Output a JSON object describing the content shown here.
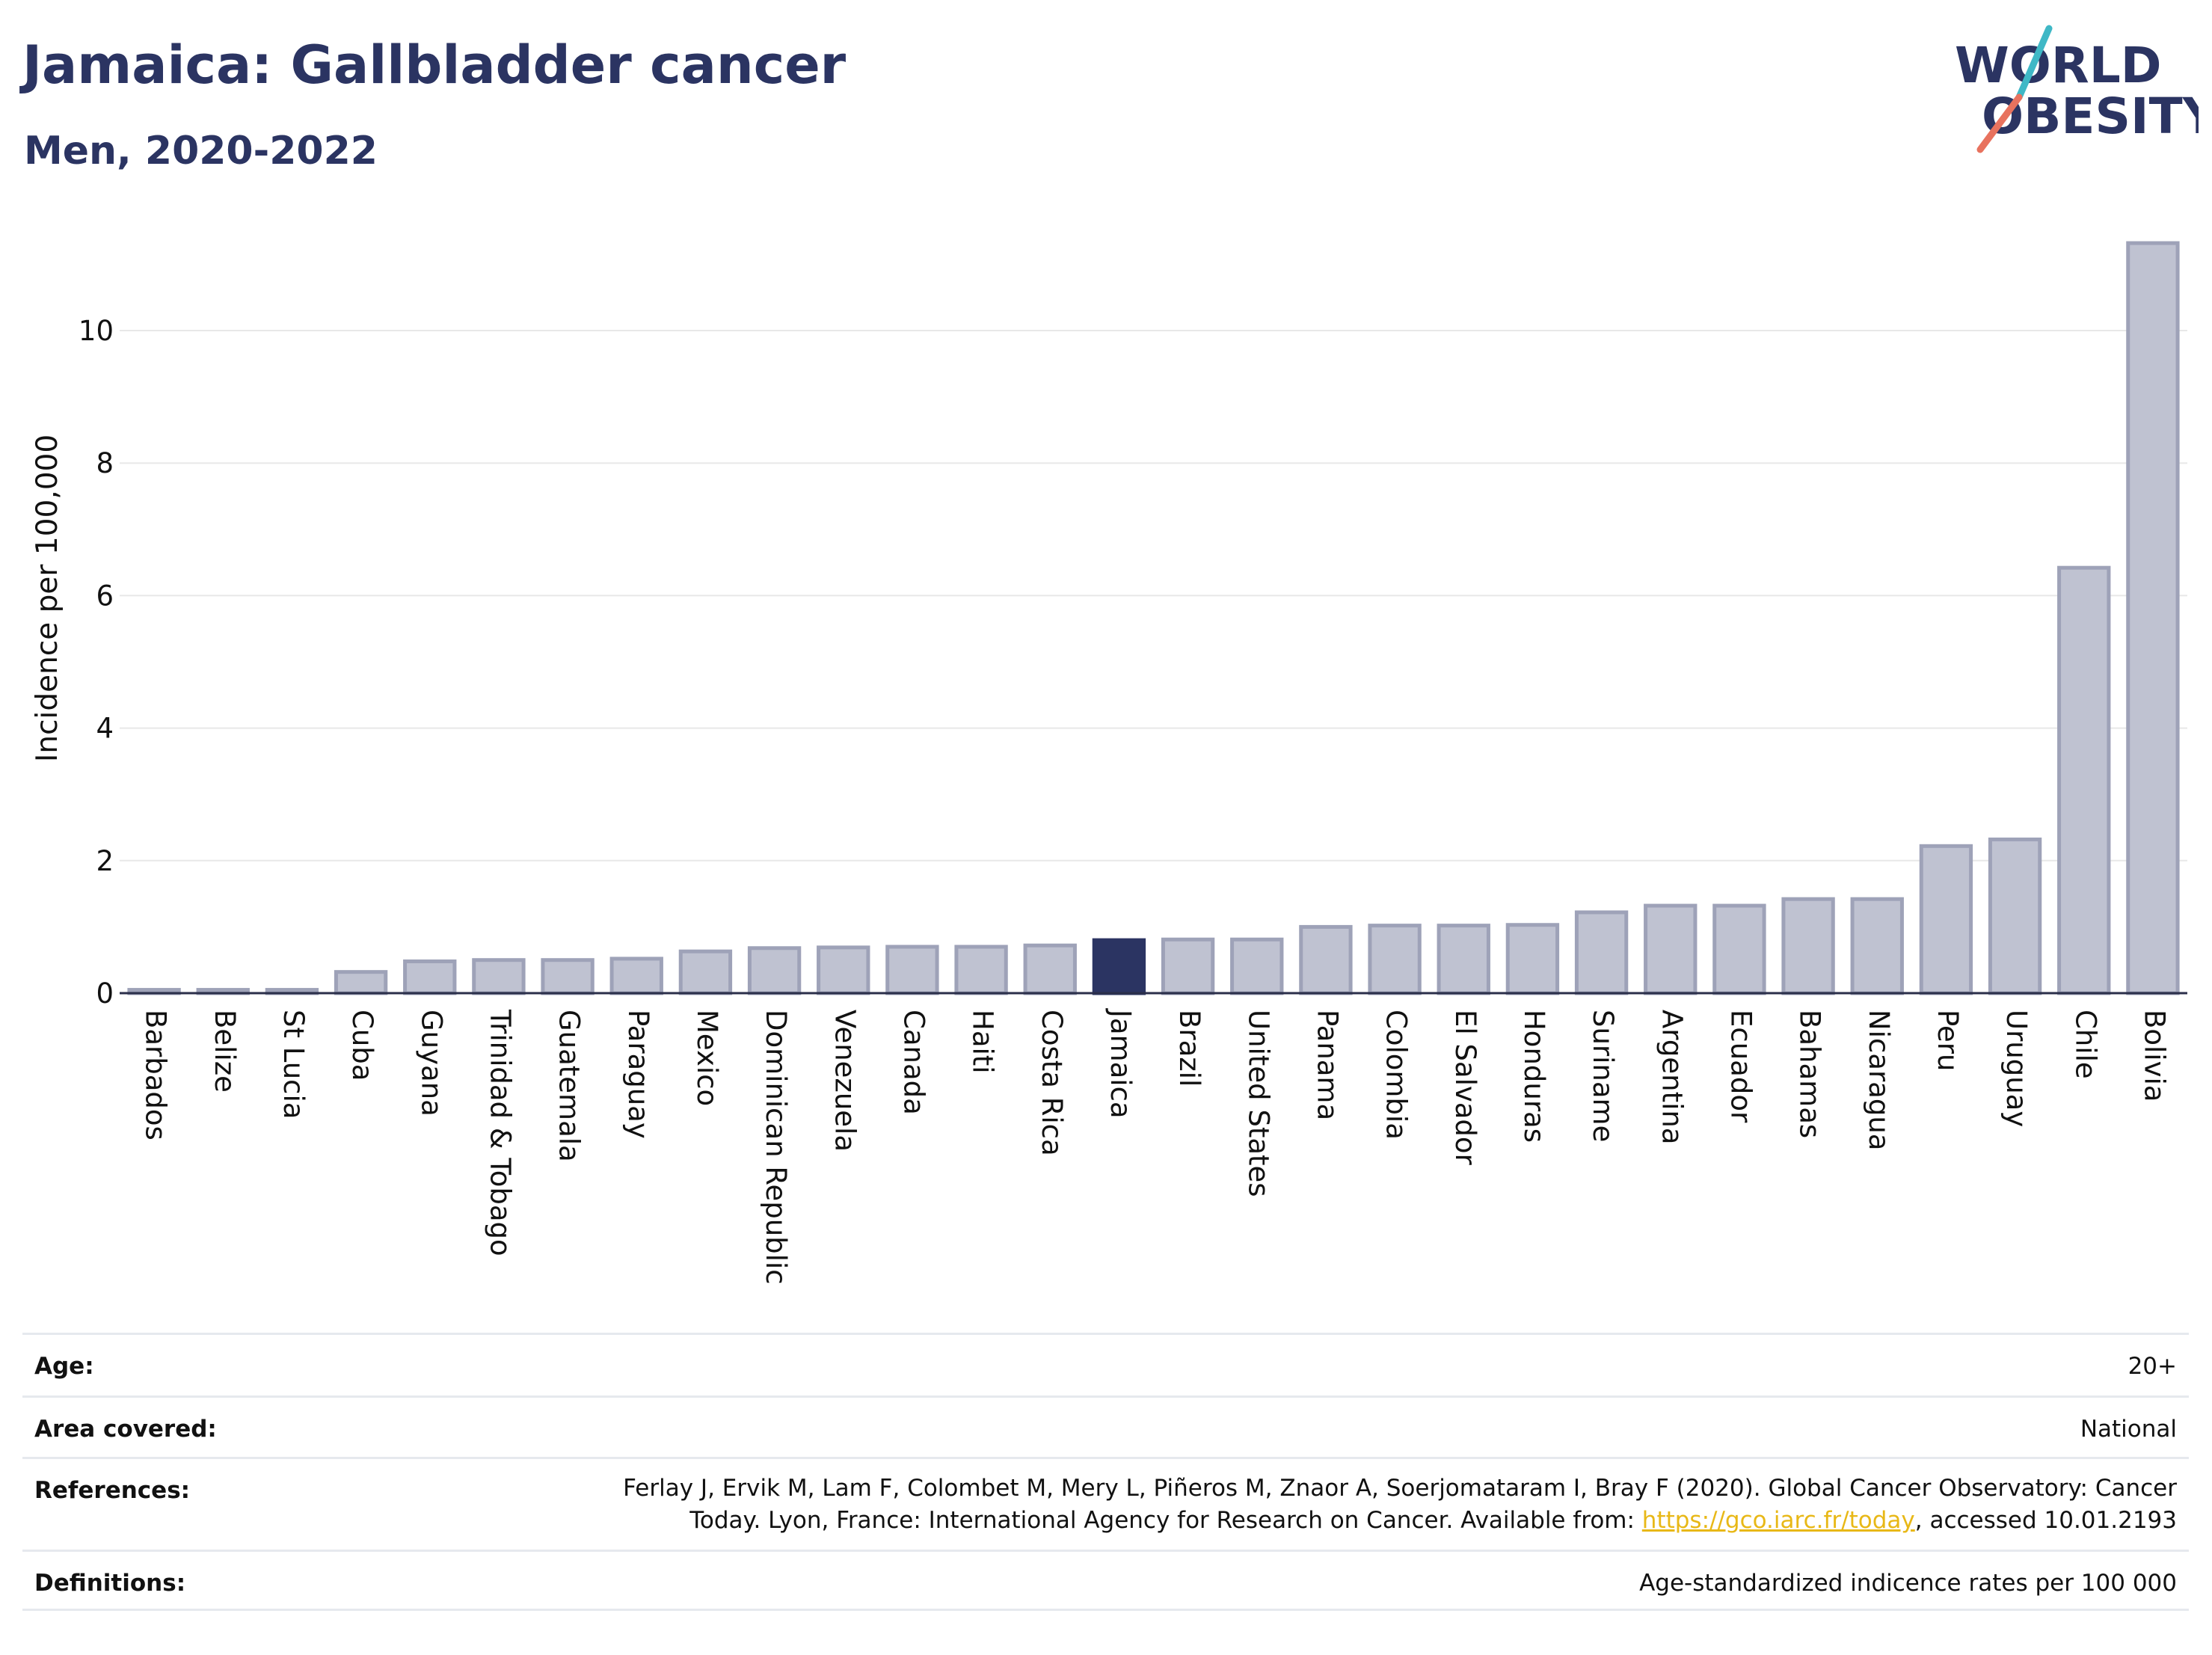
{
  "title": "Jamaica: Gallbladder cancer",
  "subtitle": "Men, 2020-2022",
  "logo": {
    "line1": "WORLD",
    "line2": "OBESITY"
  },
  "colors": {
    "highlight": "#2b3462",
    "bar_fill": "#bfc2d1",
    "bar_stroke": "#9ea2b8",
    "grid": "#e8e8e8",
    "accent_teal": "#3fb8c6",
    "accent_coral": "#e8725e",
    "link": "#e8b817"
  },
  "chart_data": {
    "type": "bar",
    "ylabel": "Incidence per 100,000",
    "xlabel": "",
    "ylim": [
      0,
      11.4
    ],
    "yticks": [
      "0",
      "2",
      "4",
      "6",
      "8",
      "10"
    ],
    "grid": true,
    "highlight": "Jamaica",
    "categories": [
      "Barbados",
      "Belize",
      "St Lucia",
      "Cuba",
      "Guyana",
      "Trinidad & Tobago",
      "Guatemala",
      "Paraguay",
      "Mexico",
      "Dominican Republic",
      "Venezuela",
      "Canada",
      "Haiti",
      "Costa Rica",
      "Jamaica",
      "Brazil",
      "United States",
      "Panama",
      "Colombia",
      "El Salvador",
      "Honduras",
      "Suriname",
      "Argentina",
      "Ecuador",
      "Bahamas",
      "Nicaragua",
      "Peru",
      "Uruguay",
      "Chile",
      "Bolivia"
    ],
    "values": [
      0.05,
      0.05,
      0.05,
      0.32,
      0.48,
      0.5,
      0.5,
      0.52,
      0.63,
      0.68,
      0.69,
      0.7,
      0.7,
      0.72,
      0.8,
      0.81,
      0.81,
      1.0,
      1.02,
      1.02,
      1.03,
      1.22,
      1.32,
      1.32,
      1.42,
      1.42,
      2.22,
      2.32,
      6.42,
      11.32
    ]
  },
  "info": {
    "age_label": "Age:",
    "age_value": "20+",
    "area_label": "Area covered:",
    "area_value": "National",
    "references_label": "References:",
    "references_line1": "Ferlay J, Ervik M, Lam F, Colombet M, Mery L, Piñeros M, Znaor A, Soerjomataram I, Bray F (2020). Global Cancer Observatory: Cancer",
    "references_line2_pre": "Today. Lyon, France: International Agency for Research on Cancer. Available from: ",
    "references_link": "https://gco.iarc.fr/today",
    "references_line2_post": ", accessed 10.01.2193",
    "definitions_label": "Definitions:",
    "definitions_value": "Age-standardized indicence rates per 100 000"
  }
}
